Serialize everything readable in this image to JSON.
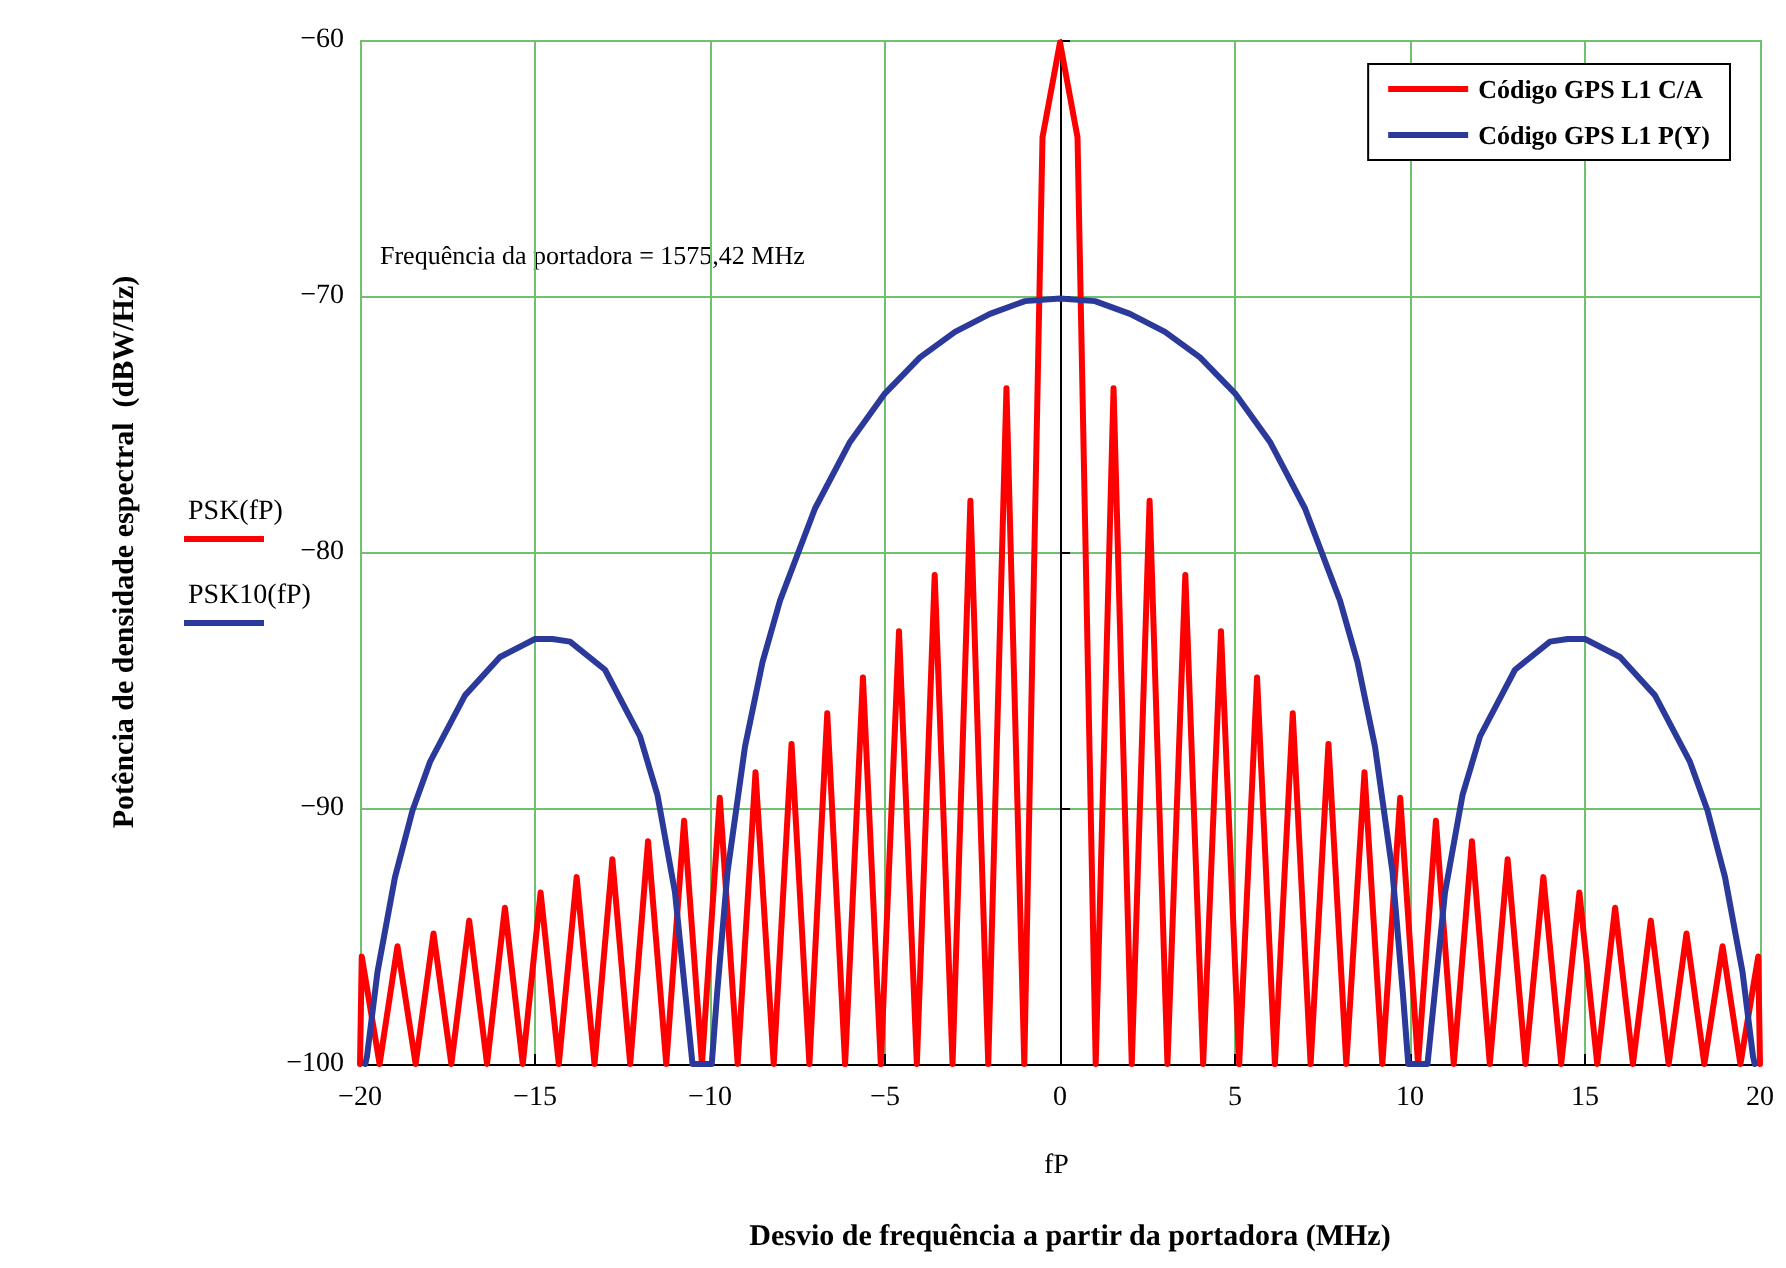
{
  "chart_data": {
    "type": "line",
    "xlabel": "Desvio de frequência a partir da portadora (MHz)",
    "ylabel": "Potência de densidade espectral  (dBW/Hz)",
    "annotations": [
      "Frequência da portadora = 1575,42 MHz",
      "fP",
      "PSK(fP)",
      "PSK10(fP)"
    ],
    "xlim": [
      -20,
      20
    ],
    "xticks": [
      -20,
      -15,
      -10,
      -5,
      0,
      5,
      10,
      15,
      20
    ],
    "ylim": [
      -100,
      -60
    ],
    "yticks": [
      -100,
      -90,
      -80,
      -70,
      -60
    ],
    "grid": true,
    "legend": "top right",
    "line_style": "solid",
    "series": [
      {
        "name": "Código GPS L1 C/A",
        "color": "#ff0000",
        "x": [
          -20,
          -19.95,
          -19.44,
          -18.93,
          -18.41,
          -17.9,
          -17.39,
          -16.88,
          -16.37,
          -15.86,
          -15.35,
          -14.84,
          -14.32,
          -13.81,
          -13.3,
          -12.79,
          -12.28,
          -11.77,
          -11.25,
          -10.74,
          -10.23,
          -9.72,
          -9.21,
          -8.7,
          -8.18,
          -7.67,
          -7.16,
          -6.65,
          -6.14,
          -5.63,
          -5.12,
          -4.6,
          -4.09,
          -3.58,
          -3.07,
          -2.56,
          -2.05,
          -1.53,
          -1.02,
          -0.5,
          0,
          0.5,
          1.02,
          1.53,
          2.05,
          2.56,
          3.07,
          3.58,
          4.09,
          4.6,
          5.12,
          5.63,
          6.14,
          6.65,
          7.16,
          7.67,
          8.18,
          8.7,
          9.21,
          9.72,
          10.23,
          10.74,
          11.25,
          11.77,
          12.28,
          12.79,
          13.3,
          13.81,
          14.32,
          14.84,
          15.35,
          15.86,
          16.37,
          16.88,
          17.39,
          17.9,
          18.41,
          18.93,
          19.44,
          19.95,
          20
        ],
        "values": [
          -100,
          -95.8,
          -100,
          -95.4,
          -100,
          -94.9,
          -100,
          -94.4,
          -100,
          -93.9,
          -100,
          -93.3,
          -100,
          -92.7,
          -100,
          -92.0,
          -100,
          -91.3,
          -100,
          -90.5,
          -100,
          -89.6,
          -100,
          -88.6,
          -100,
          -87.5,
          -100,
          -86.3,
          -100,
          -84.9,
          -100,
          -83.1,
          -100,
          -80.9,
          -100,
          -78.0,
          -100,
          -73.6,
          -100,
          -63.8,
          -60.1,
          -63.8,
          -100,
          -73.6,
          -100,
          -78.0,
          -100,
          -80.9,
          -100,
          -83.1,
          -100,
          -84.9,
          -100,
          -86.3,
          -100,
          -87.5,
          -100,
          -88.6,
          -100,
          -89.6,
          -100,
          -90.5,
          -100,
          -91.3,
          -100,
          -92.0,
          -100,
          -92.7,
          -100,
          -93.3,
          -100,
          -93.9,
          -100,
          -94.4,
          -100,
          -94.9,
          -100,
          -95.4,
          -100,
          -95.8,
          -100
        ]
      },
      {
        "name": "Código GPS L1 P(Y)",
        "color": "#2b3a9a",
        "x": [
          -19.85,
          -19.8,
          -19.5,
          -19,
          -18.5,
          -18,
          -17,
          -16,
          -15,
          -14.5,
          -14,
          -13,
          -12,
          -11.5,
          -11,
          -10.5,
          -9.95,
          -9.8,
          -9.5,
          -9,
          -8.5,
          -8,
          -7,
          -6,
          -5,
          -4,
          -3,
          -2,
          -1,
          0,
          1,
          2,
          3,
          4,
          5,
          6,
          7,
          8,
          8.5,
          9,
          9.5,
          9.8,
          9.95,
          10.5,
          11,
          11.5,
          12,
          13,
          14,
          14.5,
          15,
          16,
          17,
          18,
          18.5,
          19,
          19.5,
          19.8,
          19.85
        ],
        "values": [
          -100,
          -99.7,
          -96.4,
          -92.7,
          -90.1,
          -88.2,
          -85.6,
          -84.1,
          -83.4,
          -83.4,
          -83.5,
          -84.6,
          -87.2,
          -89.5,
          -93.3,
          -100,
          -100,
          -97.3,
          -92.5,
          -87.6,
          -84.3,
          -81.9,
          -78.3,
          -75.7,
          -73.8,
          -72.4,
          -71.4,
          -70.7,
          -70.2,
          -70.1,
          -70.2,
          -70.7,
          -71.4,
          -72.4,
          -73.8,
          -75.7,
          -78.3,
          -81.9,
          -84.3,
          -87.6,
          -92.5,
          -97.3,
          -100,
          -100,
          -93.3,
          -89.5,
          -87.2,
          -84.6,
          -83.5,
          -83.4,
          -83.4,
          -84.1,
          -85.6,
          -88.2,
          -90.1,
          -92.7,
          -96.4,
          -99.7,
          -100
        ]
      }
    ]
  }
}
